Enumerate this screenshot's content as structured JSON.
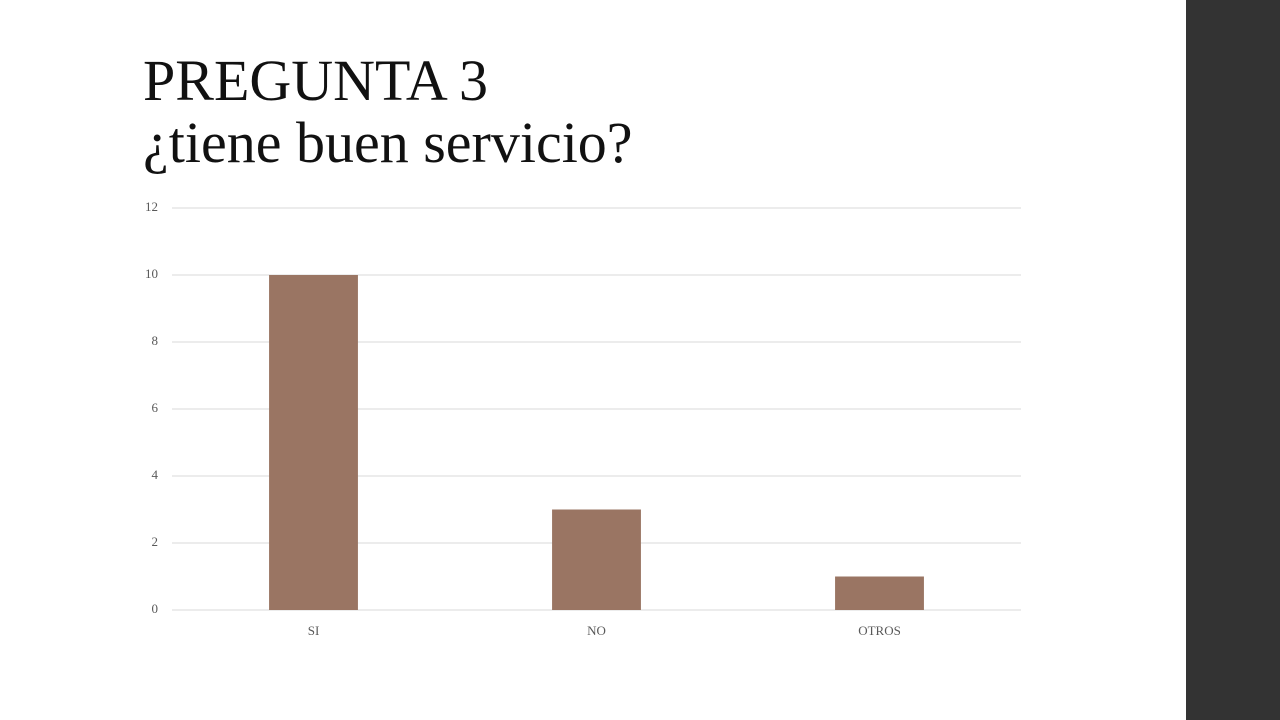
{
  "chart_data": {
    "type": "bar",
    "title": "PREGUNTA 3",
    "subtitle": "¿tiene buen servicio?",
    "categories": [
      "SI",
      "NO",
      "OTROS"
    ],
    "values": [
      10,
      3,
      1
    ],
    "color": "#9a7563",
    "ylim": [
      0,
      12
    ],
    "yticks": [
      0,
      2,
      4,
      6,
      8,
      10,
      12
    ],
    "grid": true
  }
}
